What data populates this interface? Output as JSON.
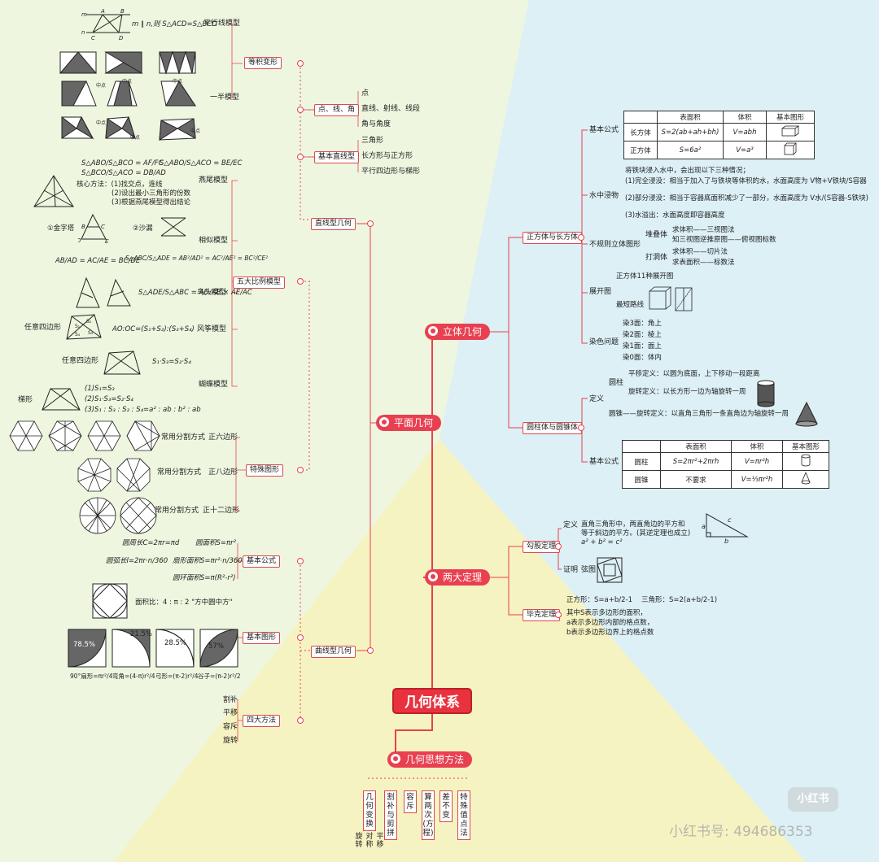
{
  "center_title": "几何体系",
  "colors": {
    "accent": "#e84050",
    "bg_green": "#eef6df",
    "bg_blue": "#dcf0f5",
    "bg_yellow": "#f6f3c2"
  },
  "branches": {
    "plane": "平面几何",
    "solid": "立体几何",
    "theorems": "两大定理",
    "methods": "几何思想方法"
  },
  "plane": {
    "straight": "直线型几何",
    "curved": "曲线型几何",
    "points_lines": "点、线、角",
    "basic_straight": "基本直线型",
    "area_transform": "等积变形",
    "five_ratio": "五大比例模型",
    "special_figures": "特殊图形",
    "basic_formula": "基本公式",
    "basic_figures": "基本图形",
    "four_methods": "四大方法",
    "points_items": [
      "点",
      "直线、射线、线段",
      "角与角度"
    ],
    "basic_items": [
      "三角形",
      "长方形与正方形",
      "平行四边形与梯形"
    ],
    "parallel_model": "平行线模型",
    "parallel_formula": "m ∥ n,则 S△ACD=S△BCD",
    "half_model": "一半模型",
    "midpoint": "中点",
    "swallow_model": "燕尾模型",
    "swallow_formulas": [
      "S△ABO/S△BCO = AF/FC",
      "S△BCO/S△ACO = DB/AD",
      "S△ABO/S△ACO = BE/EC"
    ],
    "core_method": [
      "核心方法：(1)找交点，连线",
      "(2)设出最小三角形的份数",
      "(3)根据燕尾模型得出结论"
    ],
    "similar_model": "相似模型",
    "pyramid": "①金字塔",
    "hourglass": "②沙漏",
    "similar_formula1": "AB/AD = AC/AE = BC/DE",
    "similar_formula2": "S△ABC/S△ADE = AB²/AD² = AC²/AE² = BC²/CE²",
    "bird_model": "鸟头模型",
    "bird_formula": "S△ADE/S△ABC = AD/AB × AE/AC",
    "any_quad": "任意四边形",
    "kite_formula": "AO:OC=(S₁+S₂):(S₃+S₄)",
    "kite_model": "风筝模型",
    "any_quad2": "任意四边形",
    "butterfly_formula": "S₁·S₃=S₂·S₄",
    "butterfly_model": "蝴蝶模型",
    "trapezoid": "梯形",
    "trap_formulas": [
      "(1)S₁=S₃",
      "(2)S₁·S₃=S₂·S₄",
      "(3)S₁ : S₃ : S₂ : S₄=a² : ab : b² : ab"
    ],
    "common_split": "常用分割方式",
    "hexagon": "正六边形",
    "octagon": "正八边形",
    "dodecagon": "正十二边形",
    "circle_formulas": [
      "圆周长C=2πr=πd",
      "圆面积S=πr²",
      "圆弧长l=2πr·n/360",
      "扇形面积S=πr²·n/360",
      "圆环面积S=π(R²-r²)"
    ],
    "area_ratio": "面积比：4 : π : 2 \"方中圆中方\"",
    "percents": [
      "78.5%",
      "21.5%",
      "28.5%",
      "57%"
    ],
    "shape_formulas": [
      "90°扇形=πr²/4",
      "弯角=(4-π)r²/4",
      "弓形=(π-2)r²/4",
      "谷子=(π-2)r²/2"
    ],
    "four_items": [
      "割补",
      "平移",
      "容斥",
      "旋转"
    ]
  },
  "solid": {
    "cuboid": "正方体与长方体",
    "cylinder": "圆柱体与圆锥体",
    "basic_formula": "基本公式",
    "table1": {
      "headers": [
        "",
        "表面积",
        "体积",
        "基本图形"
      ],
      "rows": [
        [
          "长方体",
          "S=2(ab+ah+bh)",
          "V=abh",
          ""
        ],
        [
          "正方体",
          "S=6a²",
          "V=a³",
          ""
        ]
      ]
    },
    "water": "水中浸物",
    "water_lines": [
      "将铁块浸入水中，会出现以下三种情况；",
      "(1)完全浸没：相当于加入了与铁块等体积的水，水面高度为 V物+V铁块/S容器",
      "(2)部分浸没：相当于容器底面积减少了一部分，水面高度为 V水/(S容器-S铁块)",
      "(3)水溢出：水面高度即容器高度"
    ],
    "irregular": "不规则立体图形",
    "stacking": "堆叠体",
    "stack_items": [
      "求体积——三视图法",
      "知三视图逆推原图——俯视图标数"
    ],
    "drilling": "打洞体",
    "drill_items": [
      "求体积——切片法",
      "求表面积——标数法"
    ],
    "unfold": "展开图",
    "unfold_items": [
      "正方体11种展开图",
      "最短路线"
    ],
    "dyeing": "染色问题",
    "dye_items": [
      "染3面：角上",
      "染2面：棱上",
      "染1面：面上",
      "染0面：体内"
    ],
    "definition": "定义",
    "cylinder_label": "圆柱",
    "cyl_defs": [
      "平移定义：以圆为底面，上下移动一段距离",
      "旋转定义：以长方形一边为轴旋转一周"
    ],
    "cone_def": "圆锥——旋转定义：以直角三角形一条直角边为轴旋转一周",
    "basic_formula2": "基本公式",
    "table2": {
      "headers": [
        "",
        "表面积",
        "体积",
        "基本图形"
      ],
      "rows": [
        [
          "圆柱",
          "S=2πr²+2πrh",
          "V=πr²h",
          ""
        ],
        [
          "圆锥",
          "不要求",
          "V=⅓πr²h",
          ""
        ]
      ]
    }
  },
  "theorems": {
    "pythagoras": "勾股定理",
    "pick": "毕克定理",
    "py_def_label": "定义",
    "py_def": [
      "直角三角形中，两直角边的平方和",
      "等于斜边的平方。(其逆定理也成立)",
      "a² + b² = c²"
    ],
    "proof_label": "证明",
    "proof": "弦图",
    "pick_lines": [
      "正方形：S=a+b/2-1",
      "三角形：S=2(a+b/2-1)",
      "其中S表示多边形的面积，",
      "a表示多边形内部的格点数，",
      "b表示多边形边界上的格点数"
    ]
  },
  "methods": {
    "items": [
      "几何变换",
      "割补与剪拼",
      "容斥",
      "算两次(方程)",
      "差不变",
      "特殊值点法"
    ],
    "sub": [
      "旋转",
      "对称",
      "平移"
    ]
  },
  "watermark": {
    "logo": "小红书",
    "id": "小红书号: 494686353"
  }
}
